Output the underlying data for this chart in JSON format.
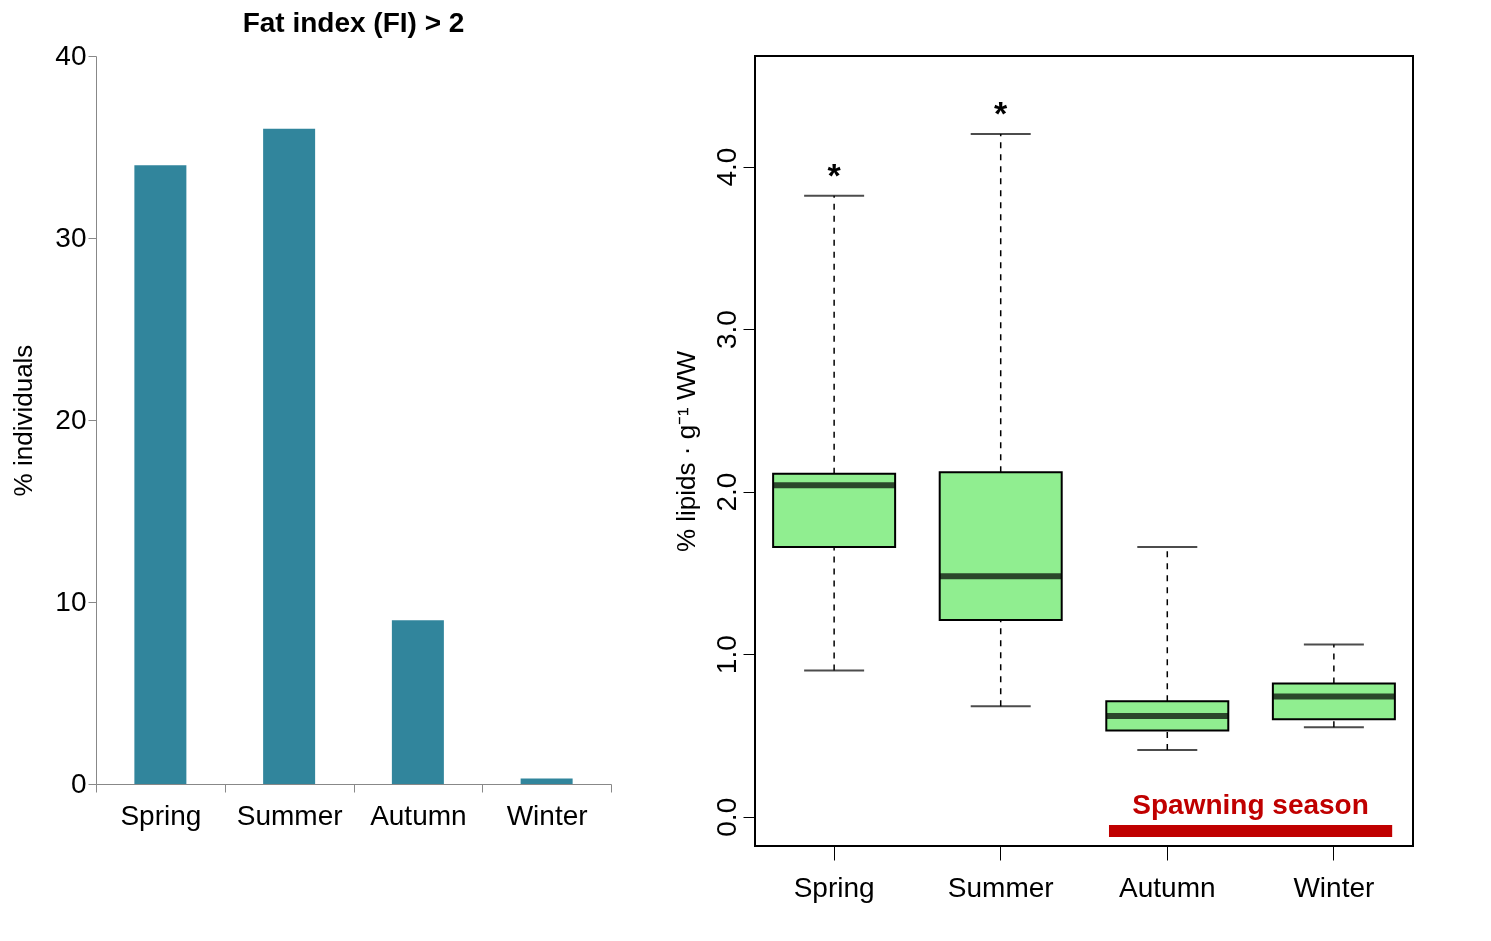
{
  "chart_data": [
    {
      "type": "bar",
      "title": "Fat index (FI) > 2",
      "ylabel": "% individuals",
      "categories": [
        "Spring",
        "Summer",
        "Autumn",
        "Winter"
      ],
      "values": [
        34,
        36,
        9,
        0.3
      ],
      "color": "#31859c",
      "ylim": [
        0,
        40
      ],
      "yticks": [
        0,
        10,
        20,
        30,
        40
      ],
      "grid": false
    },
    {
      "type": "box",
      "ylabel": "% lipids · g⁻¹ WW",
      "categories": [
        "Spring",
        "Summer",
        "Autumn",
        "Winter"
      ],
      "boxes": [
        {
          "low": 0.9,
          "q1": 1.66,
          "median": 2.04,
          "q3": 2.11,
          "high": 3.82
        },
        {
          "low": 0.68,
          "q1": 1.21,
          "median": 1.48,
          "q3": 2.12,
          "high": 4.2
        },
        {
          "low": 0.41,
          "q1": 0.53,
          "median": 0.62,
          "q3": 0.71,
          "high": 1.66
        },
        {
          "low": 0.55,
          "q1": 0.6,
          "median": 0.74,
          "q3": 0.82,
          "high": 1.06
        }
      ],
      "color": "#90ee90",
      "ylim": [
        -0.18,
        4.68
      ],
      "yticks": [
        {
          "value": 0,
          "label": "0.0"
        },
        {
          "value": 1,
          "label": "1.0"
        },
        {
          "value": 2,
          "label": "2.0"
        },
        {
          "value": 3,
          "label": "3.0"
        },
        {
          "value": 4,
          "label": "4.0"
        }
      ],
      "grid": false,
      "annotations": [
        "*",
        "*",
        "Spawning season"
      ]
    }
  ]
}
